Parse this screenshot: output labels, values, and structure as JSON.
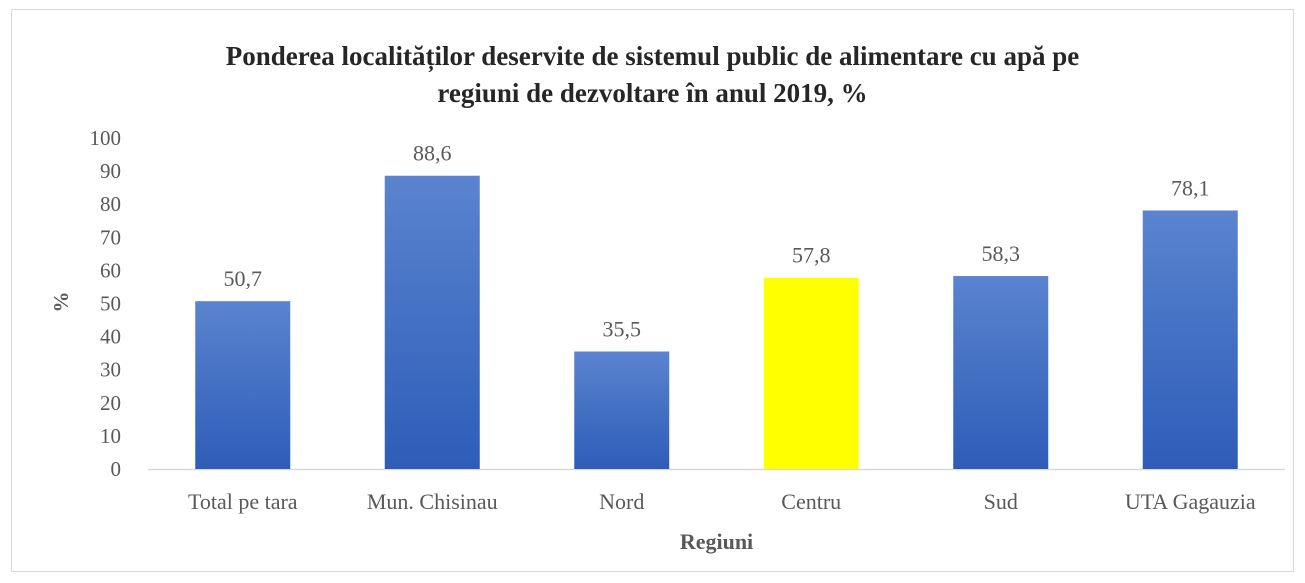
{
  "chart_data": {
    "type": "bar",
    "title_lines": [
      "Ponderea localităților  deservite de sistemul public de alimentare cu apă pe",
      "regiuni de dezvoltare în anul 2019, %"
    ],
    "xlabel": "Regiuni",
    "ylabel": "%",
    "ylim": [
      0,
      100
    ],
    "yticks": [
      0,
      10,
      20,
      30,
      40,
      50,
      60,
      70,
      80,
      90,
      100
    ],
    "grid": false,
    "legend": "none",
    "categories": [
      "Total pe tara",
      "Mun. Chisinau",
      "Nord",
      "Centru",
      "Sud",
      "UTA Gagauzia"
    ],
    "values": [
      50.7,
      88.6,
      35.5,
      57.8,
      58.3,
      78.1
    ],
    "value_labels": [
      "50,7",
      "88,6",
      "35,5",
      "57,8",
      "58,3",
      "78,1"
    ],
    "colors": {
      "bar": "#4472c4",
      "highlight": "#ffff00",
      "axis": "#d9d9d9",
      "text": "#595959",
      "title": "#262626"
    },
    "highlight_index": 3
  }
}
